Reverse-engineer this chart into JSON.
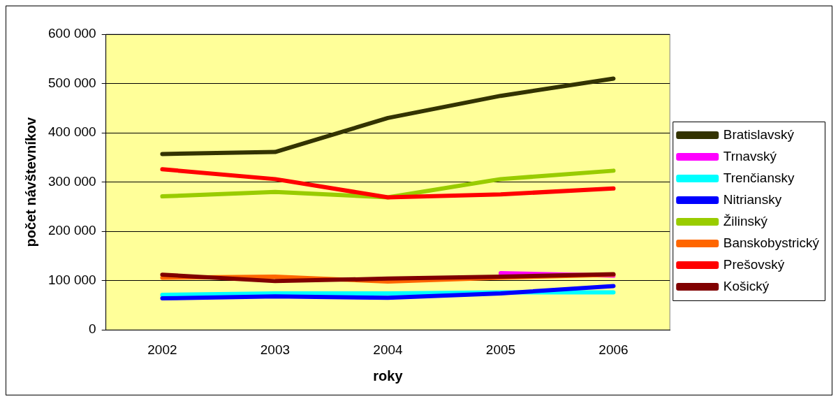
{
  "chart_data": {
    "type": "line",
    "xlabel": "roky",
    "ylabel": "počet návštevníkov",
    "categories": [
      "2002",
      "2003",
      "2004",
      "2005",
      "2006"
    ],
    "ylim": [
      0,
      600000
    ],
    "yticks": [
      {
        "value": 0,
        "label": "0"
      },
      {
        "value": 100000,
        "label": "100 000"
      },
      {
        "value": 200000,
        "label": "200 000"
      },
      {
        "value": 300000,
        "label": "300 000"
      },
      {
        "value": 400000,
        "label": "400 000"
      },
      {
        "value": 500000,
        "label": "500 000"
      },
      {
        "value": 600000,
        "label": "600 000"
      }
    ],
    "grid": "y",
    "legend": "right",
    "marker": "none",
    "line_style": "solid",
    "series": [
      {
        "name": "Bratislavský",
        "color": "#333300",
        "values": [
          357000,
          361000,
          430000,
          475000,
          510000
        ]
      },
      {
        "name": "Trnavský",
        "color": "#ff00ff",
        "values": [
          null,
          null,
          null,
          115000,
          110000
        ]
      },
      {
        "name": "Trenčiansky",
        "color": "#00ffff",
        "values": [
          71000,
          74000,
          74000,
          76000,
          76000
        ]
      },
      {
        "name": "Nitriansky",
        "color": "#0000ff",
        "values": [
          64000,
          68000,
          65000,
          74000,
          89000
        ]
      },
      {
        "name": "Žilinský",
        "color": "#99cc00",
        "values": [
          271000,
          280000,
          269000,
          306000,
          323000
        ]
      },
      {
        "name": "Banskobystrický",
        "color": "#ff6600",
        "values": [
          106000,
          108000,
          98000,
          106000,
          112000
        ]
      },
      {
        "name": "Prešovský",
        "color": "#ff0000",
        "values": [
          326000,
          306000,
          269000,
          275000,
          287000
        ]
      },
      {
        "name": "Košický",
        "color": "#800000",
        "values": [
          112000,
          99000,
          104000,
          108000,
          113000
        ]
      }
    ]
  }
}
